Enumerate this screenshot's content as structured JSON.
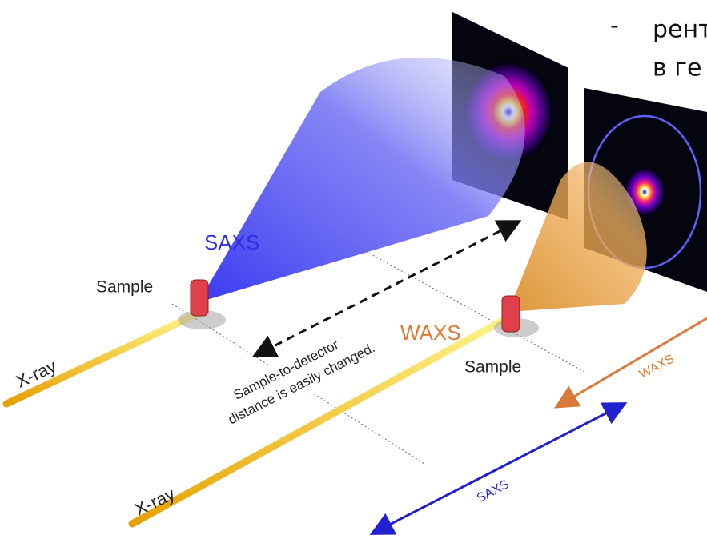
{
  "header": {
    "bullet": "-",
    "line1": "рент",
    "line2": "в ге"
  },
  "diagram": {
    "saxs_label": "SAXS",
    "sample_left": "Sample",
    "xray_left": "X-ray",
    "distance_line1": "Sample-to-detector",
    "distance_line2": "distance is easily changed.",
    "waxs_label": "WAXS",
    "sample_right": "Sample",
    "xray_right": "X-ray",
    "waxs_arrow_label": "WAXS",
    "saxs_arrow_label": "SAXS"
  }
}
